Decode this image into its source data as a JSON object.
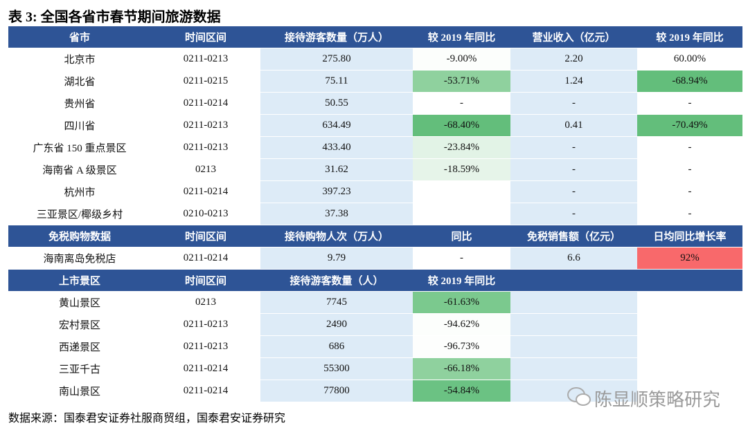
{
  "title": "表 3:  全国各省市春节期间旅游数据",
  "sections": [
    {
      "header": [
        "省市",
        "时间区间",
        "接待游客数量（万人）",
        "较 2019 年同比",
        "营业收入（亿元）",
        "较 2019 年同比"
      ],
      "rows": [
        [
          "北京市",
          "0211-0213",
          "275.80",
          "-9.00%",
          "2.20",
          "60.00%"
        ],
        [
          "湖北省",
          "0211-0215",
          "75.11",
          "-53.71%",
          "1.24",
          "-68.94%"
        ],
        [
          "贵州省",
          "0211-0214",
          "50.55",
          "-",
          "-",
          "-"
        ],
        [
          "四川省",
          "0211-0213",
          "634.49",
          "-68.40%",
          "0.41",
          "-70.49%"
        ],
        [
          "广东省 150 重点景区",
          "0211-0213",
          "433.40",
          "-23.84%",
          "-",
          "-"
        ],
        [
          "海南省 A 级景区",
          "0213",
          "31.62",
          "-18.59%",
          "-",
          "-"
        ],
        [
          "杭州市",
          "0211-0214",
          "397.23",
          null,
          "-",
          "-"
        ],
        [
          "三亚景区/椰级乡村",
          "0210-0213",
          "37.38",
          null,
          "-",
          "-"
        ]
      ]
    },
    {
      "header": [
        "免税购物数据",
        "时间区间",
        "接待购物人次（万人）",
        "同比",
        "免税销售额（亿元）",
        "日均同比增长率"
      ],
      "rows": [
        [
          "海南离岛免税店",
          "0211-0214",
          "9.79",
          "-",
          "6.6",
          "92%"
        ]
      ]
    },
    {
      "header": [
        "上市景区",
        "时间区间",
        "接待游客数量（人）",
        "较 2019 年同比",
        null,
        null
      ],
      "rows": [
        [
          "黄山景区",
          "0213",
          "7745",
          "-61.63%",
          null,
          null
        ],
        [
          "宏村景区",
          "0211-0213",
          "2490",
          "-94.62%",
          null,
          null
        ],
        [
          "西递景区",
          "0211-0213",
          "686",
          "-96.73%",
          null,
          null
        ],
        [
          "三亚千古",
          "0211-0214",
          "55300",
          "-66.18%",
          null,
          null
        ],
        [
          "南山景区",
          "0211-0214",
          "77800",
          "-54.84%",
          null,
          null
        ]
      ]
    }
  ],
  "source": "数据来源：国泰君安证券社服商贸组，国泰君安证券研究",
  "watermark": "陈显顺策略研究"
}
